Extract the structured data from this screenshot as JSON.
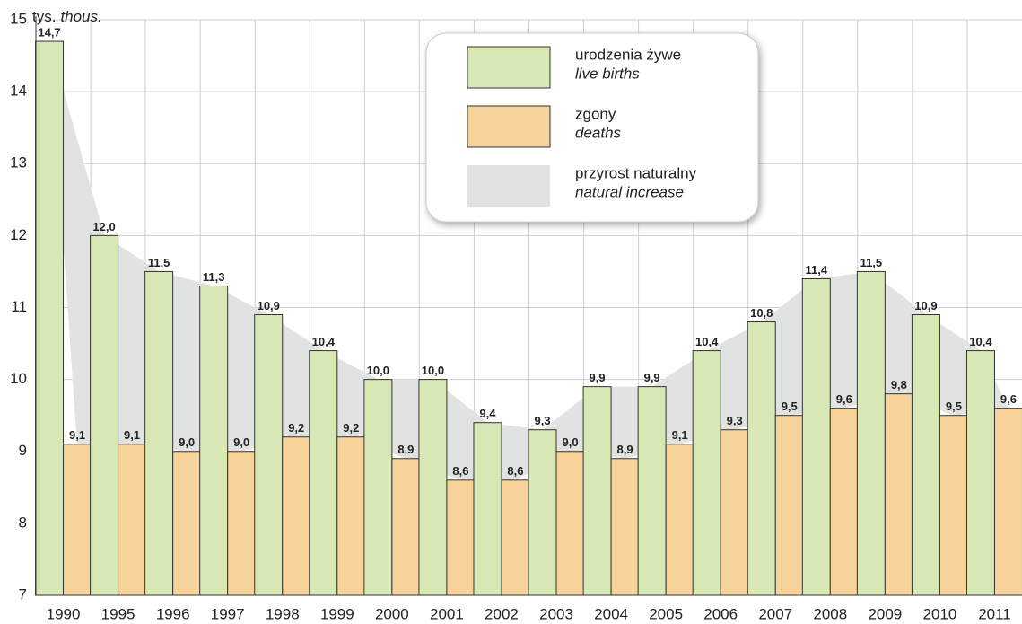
{
  "chart_data": {
    "type": "bar",
    "y_unit": "tys.",
    "y_unit_en": "thous.",
    "categories": [
      "1990",
      "1995",
      "1996",
      "1997",
      "1998",
      "1999",
      "2000",
      "2001",
      "2002",
      "2003",
      "2004",
      "2005",
      "2006",
      "2007",
      "2008",
      "2009",
      "2010",
      "2011"
    ],
    "series": [
      {
        "name": "urodzenia żywe",
        "name_en": "live births",
        "color": "#d7e8b4",
        "values": [
          14.7,
          12.0,
          11.5,
          11.3,
          10.9,
          10.4,
          10.0,
          10.0,
          9.4,
          9.3,
          9.9,
          9.9,
          10.4,
          10.8,
          11.4,
          11.5,
          10.9,
          10.4
        ],
        "value_labels": [
          "14,7",
          "12,0",
          "11,5",
          "11,3",
          "10,9",
          "10,4",
          "10,0",
          "10,0",
          "9,4",
          "9,3",
          "9,9",
          "9,9",
          "10,4",
          "10,8",
          "11,4",
          "11,5",
          "10,9",
          "10,4"
        ]
      },
      {
        "name": "zgony",
        "name_en": "deaths",
        "color": "#f5d39b",
        "values": [
          9.1,
          9.1,
          9.0,
          9.0,
          9.2,
          9.2,
          8.9,
          8.6,
          8.6,
          9.0,
          8.9,
          9.1,
          9.3,
          9.5,
          9.6,
          9.8,
          9.5,
          9.6
        ],
        "value_labels": [
          "9,1",
          "9,1",
          "9,0",
          "9,0",
          "9,2",
          "9,2",
          "8,9",
          "8,6",
          "8,6",
          "9,0",
          "8,9",
          "9,1",
          "9,3",
          "9,5",
          "9,6",
          "9,8",
          "9,5",
          "9,6"
        ]
      }
    ],
    "area": {
      "name": "przyrost naturalny",
      "name_en": "natural increase",
      "color": "#e1e2e2"
    },
    "ylim": [
      7,
      15
    ],
    "yticks": [
      7,
      8,
      9,
      10,
      11,
      12,
      13,
      14,
      15
    ],
    "grid": true,
    "legend": "top-right"
  }
}
